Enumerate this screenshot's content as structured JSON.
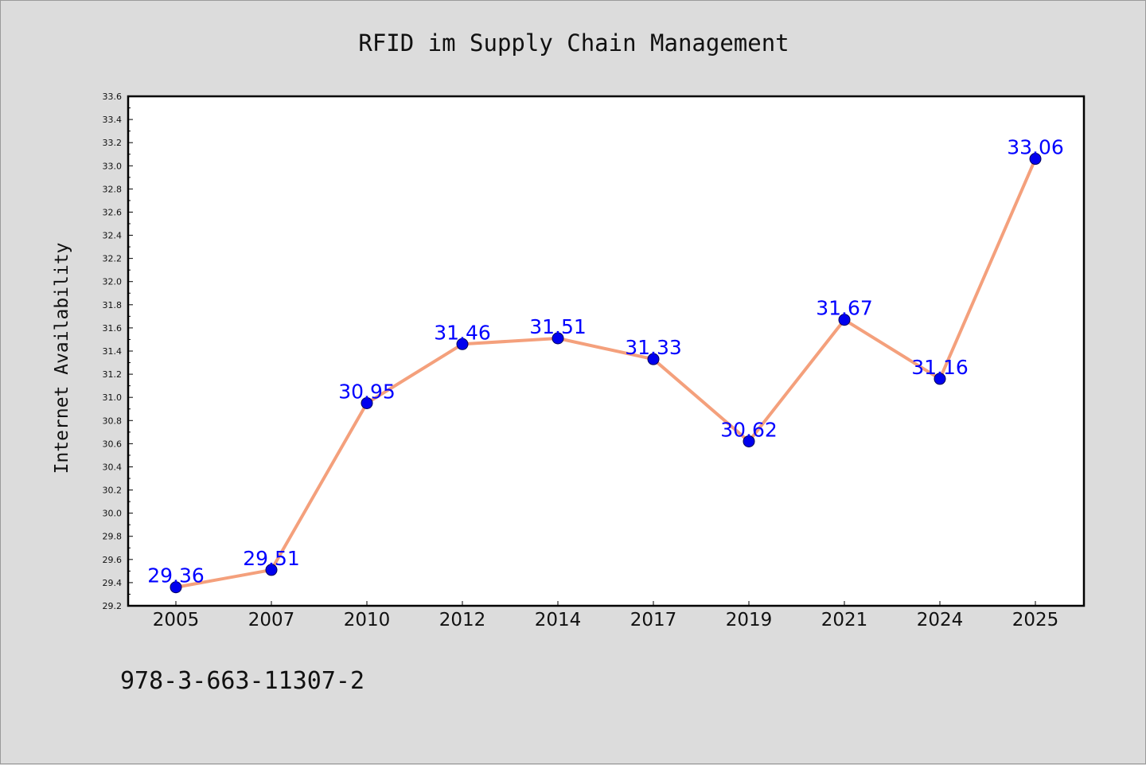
{
  "chart_data": {
    "type": "line",
    "title": "RFID im Supply Chain Management",
    "xlabel": "",
    "ylabel": "Internet Availability",
    "categories": [
      "2005",
      "2007",
      "2010",
      "2012",
      "2014",
      "2017",
      "2019",
      "2021",
      "2024",
      "2025"
    ],
    "series": [
      {
        "values": [
          29.36,
          29.51,
          30.95,
          31.46,
          31.51,
          31.33,
          30.62,
          31.67,
          31.16,
          33.06
        ]
      }
    ],
    "data_labels": [
      "29.36",
      "29.51",
      "30.95",
      "31.46",
      "31.51",
      "31.33",
      "30.62",
      "31.67",
      "31.16",
      "33.06"
    ],
    "ylim": [
      29.2,
      33.6
    ],
    "yticks": [
      "29.2",
      "29.4",
      "29.6",
      "29.8",
      "30.0",
      "30.2",
      "30.4",
      "30.6",
      "30.8",
      "31.0",
      "31.2",
      "31.4",
      "31.6",
      "31.8",
      "32.0",
      "32.2",
      "32.4",
      "32.6",
      "32.8",
      "33.0",
      "33.2",
      "33.4",
      "33.6"
    ],
    "grid": false,
    "colors": {
      "line": "#f4a07c",
      "marker": "#0000ee",
      "label": "#0000ff",
      "background": "#dcdcdc",
      "plot_background": "#ffffff"
    }
  },
  "footer_text": "978-3-663-11307-2"
}
